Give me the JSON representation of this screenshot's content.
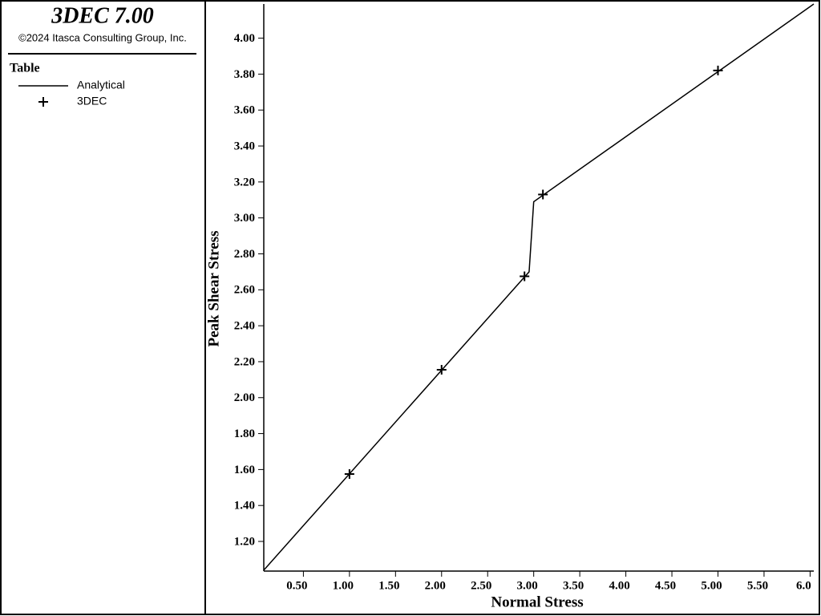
{
  "header": {
    "title": "3DEC 7.00",
    "copyright": "©2024 Itasca Consulting Group, Inc.",
    "legend_title": "Table"
  },
  "chart_data": {
    "type": "line",
    "x_label": "Normal Stress",
    "y_label": "Peak Shear Stress",
    "xlim": [
      0.07,
      6.04
    ],
    "ylim": [
      1.035,
      4.19
    ],
    "xticks": [
      {
        "value": 0.5,
        "label": "0.50"
      },
      {
        "value": 1,
        "label": "1.00"
      },
      {
        "value": 1.5,
        "label": "1.50"
      },
      {
        "value": 2,
        "label": "2.00"
      },
      {
        "value": 2.5,
        "label": "2.50"
      },
      {
        "value": 3,
        "label": "3.00"
      },
      {
        "value": 3.5,
        "label": "3.50"
      },
      {
        "value": 4,
        "label": "4.00"
      },
      {
        "value": 4.5,
        "label": "4.50"
      },
      {
        "value": 5,
        "label": "5.00"
      },
      {
        "value": 5.5,
        "label": "5.50"
      },
      {
        "value": 6,
        "label": "6.0"
      }
    ],
    "yticks": [
      {
        "value": 1.2,
        "label": "1.20"
      },
      {
        "value": 1.4,
        "label": "1.40"
      },
      {
        "value": 1.6,
        "label": "1.60"
      },
      {
        "value": 1.8,
        "label": "1.80"
      },
      {
        "value": 2,
        "label": "2.00"
      },
      {
        "value": 2.2,
        "label": "2.20"
      },
      {
        "value": 2.4,
        "label": "2.40"
      },
      {
        "value": 2.6,
        "label": "2.60"
      },
      {
        "value": 2.8,
        "label": "2.80"
      },
      {
        "value": 3,
        "label": "3.00"
      },
      {
        "value": 3.2,
        "label": "3.20"
      },
      {
        "value": 3.4,
        "label": "3.40"
      },
      {
        "value": 3.6,
        "label": "3.60"
      },
      {
        "value": 3.8,
        "label": "3.80"
      },
      {
        "value": 4,
        "label": "4.00"
      }
    ],
    "series": [
      {
        "name": "Analytical",
        "color": "#000000",
        "mode": "line",
        "x": [
          0.07,
          2.95,
          3.0,
          6.04
        ],
        "values": [
          1.04,
          2.7,
          3.09,
          4.19
        ]
      },
      {
        "name": "3DEC",
        "color": "#000000",
        "mode": "marker",
        "x": [
          1.0,
          2.0,
          2.9,
          3.1,
          5.0
        ],
        "values": [
          1.575,
          2.155,
          2.675,
          3.13,
          3.82
        ]
      }
    ]
  }
}
